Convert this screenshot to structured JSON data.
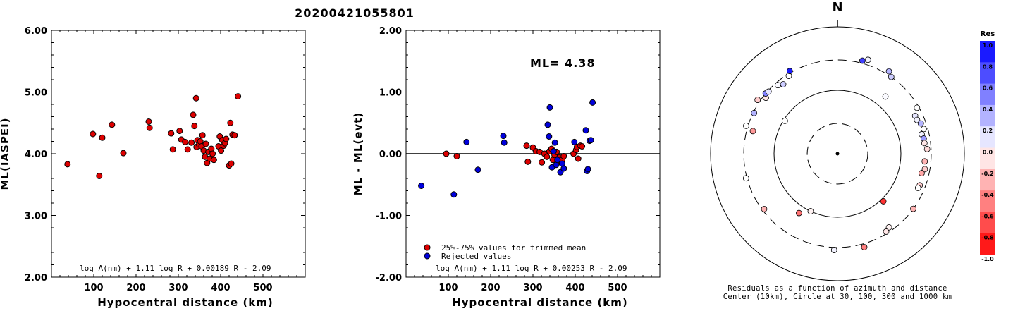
{
  "title": "20200421055801",
  "chart_data": [
    {
      "type": "scatter",
      "ylabel": "ML(IASPEI)",
      "xlabel": "Hypocentral distance (km)",
      "xlim": [
        0,
        600
      ],
      "ylim": [
        2.0,
        6.0
      ],
      "xticks": [
        "100",
        "200",
        "300",
        "400",
        "500"
      ],
      "yticks": [
        "2.00",
        "3.00",
        "4.00",
        "5.00",
        "6.00"
      ],
      "formula": "log A(nm) + 1.11 log R + 0.00189 R - 2.09",
      "series": [
        {
          "color": "#dd0000",
          "points": [
            [
              38,
              3.83
            ],
            [
              98,
              4.32
            ],
            [
              113,
              3.64
            ],
            [
              120,
              4.26
            ],
            [
              143,
              4.47
            ],
            [
              170,
              4.01
            ],
            [
              230,
              4.52
            ],
            [
              232,
              4.42
            ],
            [
              283,
              4.33
            ],
            [
              287,
              4.07
            ],
            [
              303,
              4.37
            ],
            [
              307,
              4.23
            ],
            [
              316,
              4.19
            ],
            [
              322,
              4.07
            ],
            [
              331,
              4.18
            ],
            [
              335,
              4.63
            ],
            [
              338,
              4.45
            ],
            [
              342,
              4.9
            ],
            [
              343,
              4.11
            ],
            [
              345,
              4.22
            ],
            [
              349,
              4.15
            ],
            [
              352,
              4.2
            ],
            [
              355,
              4.12
            ],
            [
              357,
              4.3
            ],
            [
              360,
              4.05
            ],
            [
              363,
              3.95
            ],
            [
              365,
              4.16
            ],
            [
              368,
              3.85
            ],
            [
              371,
              4.03
            ],
            [
              374,
              3.92
            ],
            [
              378,
              4.08
            ],
            [
              381,
              4.0
            ],
            [
              384,
              3.9
            ],
            [
              395,
              4.12
            ],
            [
              398,
              4.28
            ],
            [
              401,
              4.05
            ],
            [
              404,
              4.22
            ],
            [
              407,
              4.13
            ],
            [
              410,
              4.17
            ],
            [
              413,
              4.24
            ],
            [
              420,
              3.81
            ],
            [
              423,
              4.5
            ],
            [
              425,
              3.84
            ],
            [
              428,
              4.31
            ],
            [
              433,
              4.3
            ],
            [
              441,
              4.93
            ]
          ]
        }
      ]
    },
    {
      "type": "scatter",
      "ylabel": "ML - ML(evt)",
      "xlabel": "Hypocentral distance (km)",
      "xlim": [
        0,
        600
      ],
      "ylim": [
        -2.0,
        2.0
      ],
      "xticks": [
        "100",
        "200",
        "300",
        "400",
        "500"
      ],
      "yticks": [
        "-2.00",
        "-1.00",
        "0.00",
        "1.00",
        "2.00"
      ],
      "ml_label": "ML= 4.38",
      "reference_line": 0.0,
      "formula": "log A(nm) + 1.11 log R + 0.00253 R - 2.09",
      "legend": [
        "25%-75% values for trimmed mean",
        "Rejected values"
      ],
      "series": [
        {
          "name": "25%-75% values for trimmed mean",
          "color": "#dd0000",
          "points": [
            [
              95,
              0.0
            ],
            [
              120,
              -0.04
            ],
            [
              285,
              0.13
            ],
            [
              288,
              -0.13
            ],
            [
              300,
              0.1
            ],
            [
              307,
              0.04
            ],
            [
              316,
              0.03
            ],
            [
              321,
              -0.14
            ],
            [
              327,
              0.0
            ],
            [
              333,
              -0.05
            ],
            [
              339,
              0.04
            ],
            [
              344,
              0.08
            ],
            [
              347,
              -0.1
            ],
            [
              351,
              -0.02
            ],
            [
              356,
              0.03
            ],
            [
              360,
              -0.12
            ],
            [
              363,
              -0.06
            ],
            [
              369,
              -0.1
            ],
            [
              373,
              -0.04
            ],
            [
              396,
              0.0
            ],
            [
              402,
              0.06
            ],
            [
              404,
              0.11
            ],
            [
              407,
              -0.08
            ],
            [
              412,
              0.13
            ],
            [
              416,
              0.12
            ]
          ]
        },
        {
          "name": "Rejected values",
          "color": "#0000dd",
          "points": [
            [
              36,
              -0.52
            ],
            [
              113,
              -0.66
            ],
            [
              143,
              0.19
            ],
            [
              170,
              -0.26
            ],
            [
              230,
              0.29
            ],
            [
              232,
              0.18
            ],
            [
              335,
              0.47
            ],
            [
              338,
              0.28
            ],
            [
              340,
              0.75
            ],
            [
              345,
              -0.22
            ],
            [
              349,
              0.04
            ],
            [
              352,
              0.18
            ],
            [
              355,
              -0.18
            ],
            [
              358,
              -0.1
            ],
            [
              365,
              -0.3
            ],
            [
              369,
              -0.16
            ],
            [
              373,
              -0.24
            ],
            [
              398,
              0.19
            ],
            [
              425,
              0.38
            ],
            [
              428,
              -0.28
            ],
            [
              430,
              -0.25
            ],
            [
              434,
              0.21
            ],
            [
              437,
              0.22
            ],
            [
              441,
              0.83
            ]
          ]
        }
      ]
    },
    {
      "type": "scatter",
      "subtype": "polar residual map",
      "north_label": "N",
      "caption_line1": "Residuals as a function of azimuth and distance",
      "caption_line2": "Center (10km), Circle at 30, 100, 300 and 1000 km",
      "ring_distances_km": [
        30,
        100,
        300,
        1000
      ],
      "colorbar": {
        "title": "Res",
        "ticks": [
          "1.0",
          "0.8",
          "0.6",
          "0.4",
          "0.2",
          "0.0",
          "-0.2",
          "-0.4",
          "-0.6",
          "-0.8",
          "-1.0"
        ],
        "max_color": "#0000ff",
        "zero_color": "#ffffff",
        "min_color": "#ff0000"
      },
      "points": [
        {
          "az": 15,
          "dist_km": 330,
          "res": 0.75
        },
        {
          "az": 18,
          "dist_km": 360,
          "res": 0.05
        },
        {
          "az": 32,
          "dist_km": 340,
          "res": 0.3
        },
        {
          "az": 35,
          "dist_km": 300,
          "res": 0.2
        },
        {
          "az": 40,
          "dist_km": 150,
          "res": 0.02
        },
        {
          "az": 60,
          "dist_km": 280,
          "res": 0.0
        },
        {
          "az": 64,
          "dist_km": 230,
          "res": 0.1
        },
        {
          "az": 67,
          "dist_km": 230,
          "res": 0.05
        },
        {
          "az": 70,
          "dist_km": 250,
          "res": 0.3
        },
        {
          "az": 74,
          "dist_km": 260,
          "res": 0.0
        },
        {
          "az": 77,
          "dist_km": 230,
          "res": 0.05
        },
        {
          "az": 80,
          "dist_km": 240,
          "res": 0.4
        },
        {
          "az": 83,
          "dist_km": 240,
          "res": -0.1
        },
        {
          "az": 87,
          "dist_km": 260,
          "res": -0.15
        },
        {
          "az": 95,
          "dist_km": 240,
          "res": -0.3
        },
        {
          "az": 100,
          "dist_km": 250,
          "res": -0.2
        },
        {
          "az": 103,
          "dist_km": 230,
          "res": -0.35
        },
        {
          "az": 111,
          "dist_km": 245,
          "res": -0.2
        },
        {
          "az": 113,
          "dist_km": 240,
          "res": 0.0
        },
        {
          "az": 126,
          "dist_km": 300,
          "res": -0.3
        },
        {
          "az": 136,
          "dist_km": 110,
          "res": -0.8
        },
        {
          "az": 145,
          "dist_km": 260,
          "res": -0.05
        },
        {
          "az": 148,
          "dist_km": 280,
          "res": -0.1
        },
        {
          "az": 164,
          "dist_km": 340,
          "res": -0.5
        },
        {
          "az": 182,
          "dist_km": 330,
          "res": 0.05
        },
        {
          "az": 205,
          "dist_km": 100,
          "res": -0.05
        },
        {
          "az": 213,
          "dist_km": 130,
          "res": -0.55
        },
        {
          "az": 233,
          "dist_km": 280,
          "res": -0.3
        },
        {
          "az": 255,
          "dist_km": 310,
          "res": 0.0
        },
        {
          "az": 285,
          "dist_km": 240,
          "res": -0.4
        },
        {
          "az": 287,
          "dist_km": 320,
          "res": 0.0
        },
        {
          "az": 296,
          "dist_km": 290,
          "res": 0.3
        },
        {
          "az": 302,
          "dist_km": 95,
          "res": 0.0
        },
        {
          "az": 304,
          "dist_km": 330,
          "res": -0.2
        },
        {
          "az": 308,
          "dist_km": 270,
          "res": -0.1
        },
        {
          "az": 310,
          "dist_km": 300,
          "res": 0.5
        },
        {
          "az": 312,
          "dist_km": 290,
          "res": 0.1
        },
        {
          "az": 319,
          "dist_km": 270,
          "res": 0.02
        },
        {
          "az": 322,
          "dist_km": 245,
          "res": 0.2
        },
        {
          "az": 328,
          "dist_km": 280,
          "res": 0.0
        },
        {
          "az": 330,
          "dist_km": 320,
          "res": 0.9
        }
      ]
    }
  ]
}
